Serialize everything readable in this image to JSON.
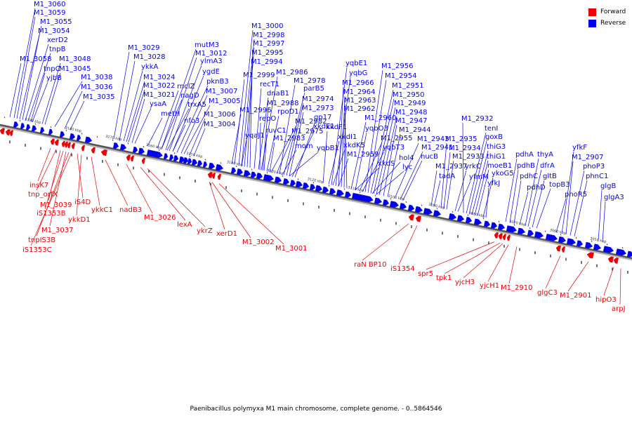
{
  "caption": "Paenibacillus polymyxa M1 main chromosome, complete genome. - 0..5864546",
  "colors": {
    "forward": "#ee0000",
    "reverse": "#0000ee",
    "axis": "#555555"
  },
  "legend": [
    {
      "label": "Forward",
      "color": "#ee0000"
    },
    {
      "label": "Reverse",
      "color": "#0000ee"
    }
  ],
  "axis": {
    "tick_labels": [
      "3190 kbp",
      "3180 kbp",
      "3170 kbp",
      "3160 kbp",
      "3150 kbp",
      "3140 kbp",
      "3130 kbp",
      "3120 kbp",
      "3110 kbp",
      "3100 kbp",
      "3090 kbp",
      "3080 kbp",
      "3070 kbp",
      "3060 kbp",
      "3050 kbp"
    ]
  },
  "reverse_labels": [
    "M1_3060",
    "M1_3059",
    "M1_3055",
    "M1_3054",
    "xerD2",
    "tnpB",
    "M1_3058",
    "M1_3048",
    "tnpC",
    "M1_3045",
    "yjbB",
    "M1_3038",
    "M1_3036",
    "M1_3035",
    "M1_3029",
    "M1_3028",
    "ykkA",
    "M1_3024",
    "M1_3022",
    "M1_3021",
    "ysaA",
    "metH",
    "mutM3",
    "M1_3012",
    "ylmA3",
    "ygdE",
    "rnclZ",
    "pknB3",
    "nagD",
    "M1_3007",
    "trxA5",
    "M1_3005",
    "nfo3",
    "M1_3006",
    "M1_3004",
    "M1_3000",
    "M1_2998",
    "M1_2997",
    "M1_2995",
    "M1_2994",
    "M1_2999",
    "M1_2986",
    "recT1",
    "dnaB1",
    "M1_2978",
    "M1_2988",
    "parB5",
    "rpoD1",
    "M1_2974",
    "M1_2996",
    "M1_2973",
    "repO",
    "gp17",
    "M1_2982",
    "yqaJ1",
    "ruvC1",
    "M1_2975",
    "xkdE1",
    "M1_2983",
    "mom",
    "yqbB1",
    "yqbE1",
    "yqbG",
    "M1_2966",
    "M1_2964",
    "M1_2963",
    "M1_2962",
    "xkdF1",
    "xkdI1",
    "xkdK5",
    "M1_2959",
    "M1_2960",
    "yqbO3",
    "M1_2956",
    "M1_2954",
    "M1_2951",
    "M1_2950",
    "M1_2949",
    "M1_2948",
    "M1_2947",
    "M1_2944",
    "M1_2955",
    "yqbT3",
    "M1_2943",
    "xkdS",
    "hol4",
    "M1_2941",
    "lyc",
    "nucB",
    "M1_2932",
    "tenI",
    "goxB",
    "M1_2935",
    "thiG3",
    "M1_2934",
    "thiG1",
    "M1_2933",
    "moeB1",
    "M1_2937",
    "tadA",
    "yrkC",
    "ykoG5",
    "yfmM",
    "yfkJ",
    "pdhA",
    "pdhB",
    "pdhC",
    "pdhD",
    "thyA",
    "dfrA",
    "gltB",
    "topB3",
    "yfkF",
    "M1_2907",
    "phoP3",
    "phoR5",
    "phnC1",
    "glgB",
    "glgA3"
  ],
  "forward_labels": [
    "insK7",
    "tnp_orfX",
    "M1_3039",
    "iS1353B",
    "iS4D",
    "ykkD1",
    "ykkC1",
    "nadB3",
    "M1_3037",
    "tnpIS3B",
    "iS1353C",
    "M1_3026",
    "lexA",
    "ykrZ",
    "xerD1",
    "M1_3002",
    "M1_3001",
    "raN BP10",
    "iS1354",
    "spr5",
    "tpk1",
    "yjcH3",
    "yjcH1",
    "M1_2910",
    "glgC3",
    "M1_2901",
    "hipO3",
    "arpJ"
  ]
}
